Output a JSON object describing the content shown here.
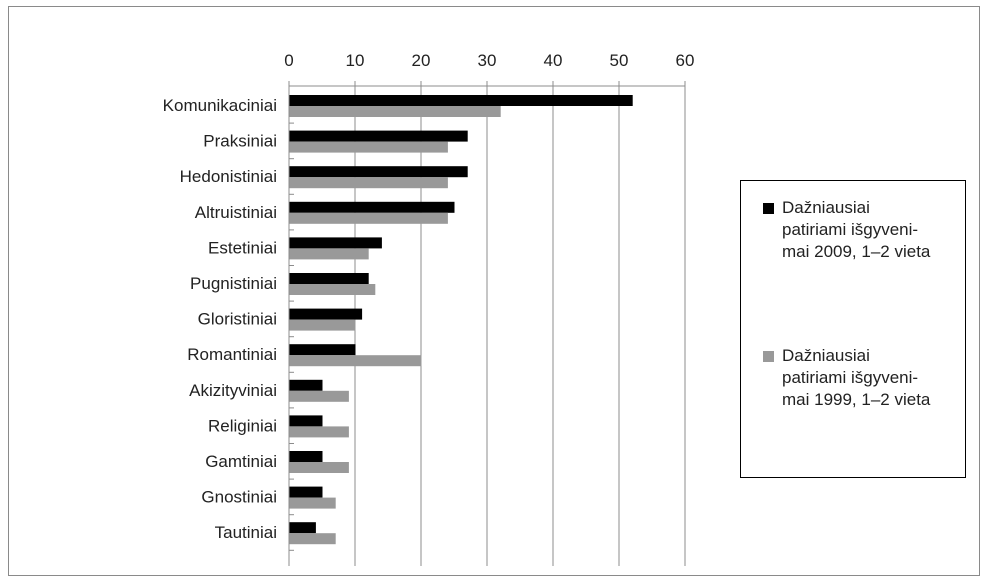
{
  "chart_data": {
    "type": "bar",
    "orientation": "horizontal",
    "categories": [
      "Komunikaciniai",
      "Praksiniai",
      "Hedonistiniai",
      "Altruistiniai",
      "Estetiniai",
      "Pugnistiniai",
      "Gloristiniai",
      "Romantiniai",
      "Akizityviniai",
      "Religiniai",
      "Gamtiniai",
      "Gnostiniai",
      "Tautiniai"
    ],
    "series": [
      {
        "name": "Dažniausiai patiriami išgyvenimai 2009, 1–2 vieta",
        "values": [
          52,
          27,
          27,
          25,
          14,
          12,
          11,
          10,
          5,
          5,
          5,
          5,
          4
        ],
        "color": "#000000"
      },
      {
        "name": "Dažniausiai patiriami išgyvenimai 1999, 1–2 vieta",
        "values": [
          32,
          24,
          24,
          24,
          12,
          13,
          10,
          20,
          9,
          9,
          9,
          7,
          7
        ],
        "color": "#999999"
      }
    ],
    "x_ticks": [
      0,
      10,
      20,
      30,
      40,
      50,
      60
    ],
    "xlim": [
      0,
      60
    ],
    "grid": true,
    "axis_position": "top",
    "legend_position": "right",
    "title": "",
    "xlabel": "",
    "ylabel": ""
  },
  "legend": {
    "items": [
      {
        "line1": "Dažniausiai",
        "line2": "patiriami išgyveni-",
        "line3": "mai 2009, 1–2 vieta"
      },
      {
        "line1": "Dažniausiai",
        "line2": "patiriami išgyveni-",
        "line3": "mai 1999, 1–2 vieta"
      }
    ]
  }
}
